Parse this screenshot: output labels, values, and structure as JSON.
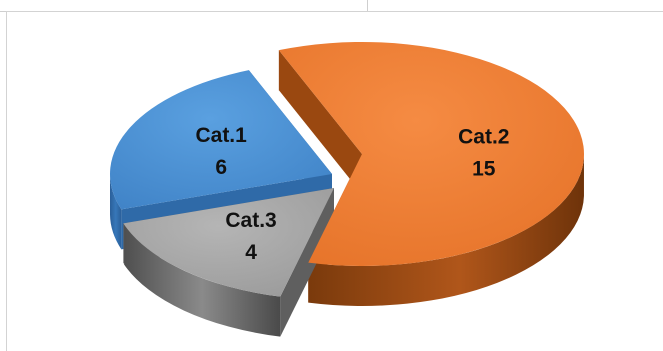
{
  "chart_data": {
    "type": "pie",
    "style": "3d-exploded",
    "categories": [
      "Cat.1",
      "Cat.2",
      "Cat.3"
    ],
    "values": [
      6,
      15,
      4
    ],
    "colors": [
      "#4a8fd4",
      "#ee7d31",
      "#a6a6a6"
    ],
    "side_colors": [
      "#2f6aa8",
      "#9a4810",
      "#5f5f5f"
    ],
    "legend": "none",
    "data_labels": "category and value inside slices"
  }
}
